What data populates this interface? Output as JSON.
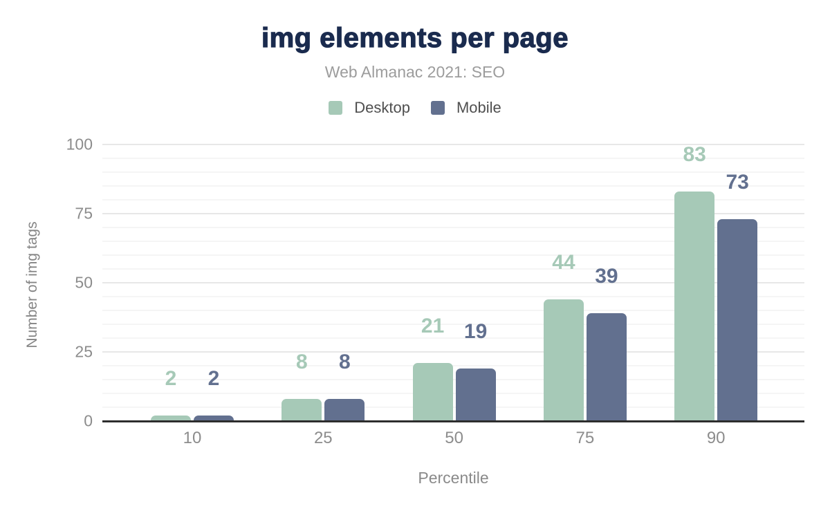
{
  "colors": {
    "title": "#1a2b4e",
    "desktop": "#a6c9b7",
    "mobile": "#62708f",
    "axis_text": "#8c8c8c",
    "legend_text": "#4f4f4f"
  },
  "chart_data": {
    "type": "bar",
    "title": "img elements per page",
    "subtitle": "Web Almanac 2021: SEO",
    "categories": [
      "10",
      "25",
      "50",
      "75",
      "90"
    ],
    "series": [
      {
        "name": "Desktop",
        "color": "#a6c9b7",
        "values": [
          2,
          8,
          21,
          44,
          83
        ]
      },
      {
        "name": "Mobile",
        "color": "#62708f",
        "values": [
          2,
          8,
          19,
          39,
          73
        ]
      }
    ],
    "xlabel": "Percentile",
    "ylabel": "Number of img tags",
    "ylim": [
      0,
      100
    ],
    "yticks": [
      0,
      25,
      50,
      75,
      100
    ],
    "minor_grid_step": 5,
    "grid": "on",
    "legend_position": "top",
    "value_labels": "above-bars"
  }
}
